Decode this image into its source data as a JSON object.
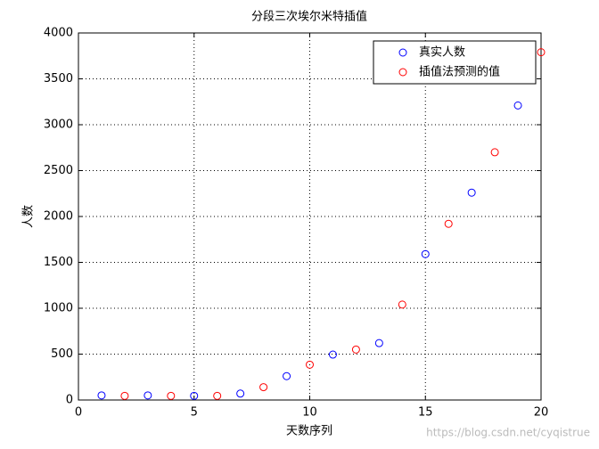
{
  "chart_data": {
    "type": "scatter",
    "title": "分段三次埃尔米特插值",
    "x_label": "天数序列",
    "y_label": "人数",
    "xlim": [
      0,
      20
    ],
    "xticks": [
      0,
      5,
      10,
      15,
      20
    ],
    "ylim": [
      0,
      4000
    ],
    "yticks": [
      0,
      500,
      1000,
      1500,
      2000,
      2500,
      3000,
      3500,
      4000
    ],
    "grid": true,
    "legend": "upper right",
    "series": [
      {
        "name": "真实人数",
        "color": "#0000ff",
        "x": [
          1,
          3,
          5,
          7,
          9,
          11,
          13,
          15,
          17,
          19
        ],
        "values": [
          50,
          50,
          45,
          70,
          260,
          495,
          620,
          1590,
          2260,
          3210
        ]
      },
      {
        "name": "插值法预测的值",
        "color": "#ff0000",
        "x": [
          2,
          4,
          6,
          8,
          10,
          12,
          14,
          16,
          18,
          20
        ],
        "values": [
          45,
          45,
          45,
          140,
          385,
          550,
          1040,
          1920,
          2700,
          3790
        ]
      }
    ],
    "watermark": "https://blog.csdn.net/cyqistrue"
  }
}
